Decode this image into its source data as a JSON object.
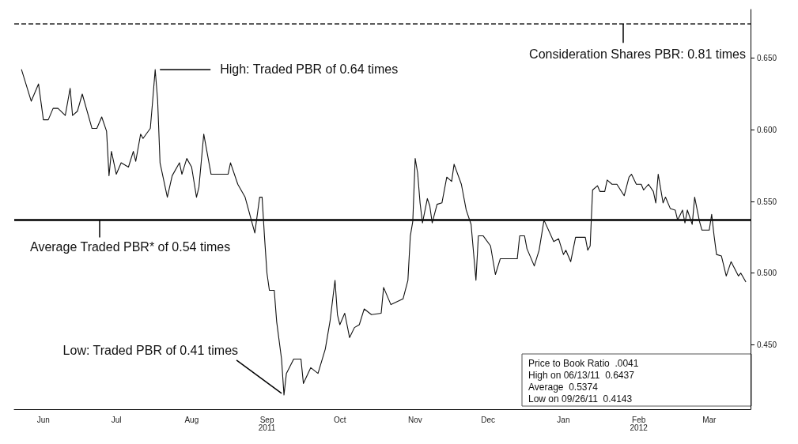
{
  "chart_data": {
    "type": "line",
    "x": [
      "2011-06-06",
      "2011-06-10",
      "2011-06-13",
      "2011-06-15",
      "2011-06-17",
      "2011-06-19",
      "2011-06-21",
      "2011-06-24",
      "2011-06-26",
      "2011-06-27",
      "2011-06-29",
      "2011-07-01",
      "2011-07-05",
      "2011-07-07",
      "2011-07-09",
      "2011-07-11",
      "2011-07-12",
      "2011-07-13",
      "2011-07-15",
      "2011-07-17",
      "2011-07-20",
      "2011-07-22",
      "2011-07-23",
      "2011-07-25",
      "2011-07-26",
      "2011-07-29",
      "2011-07-30",
      "2011-07-31",
      "2011-08-01",
      "2011-08-02",
      "2011-08-05",
      "2011-08-07",
      "2011-08-10",
      "2011-08-11",
      "2011-08-13",
      "2011-08-15",
      "2011-08-17",
      "2011-08-18",
      "2011-08-20",
      "2011-08-23",
      "2011-08-30",
      "2011-08-31",
      "2011-09-03",
      "2011-09-06",
      "2011-09-10",
      "2011-09-12",
      "2011-09-13",
      "2011-09-14",
      "2011-09-15",
      "2011-09-16",
      "2011-09-18",
      "2011-09-19",
      "2011-09-21",
      "2011-09-22",
      "2011-09-23",
      "2011-09-26",
      "2011-09-29",
      "2011-09-30",
      "2011-10-03",
      "2011-10-06",
      "2011-10-09",
      "2011-10-11",
      "2011-10-13",
      "2011-10-14",
      "2011-10-15",
      "2011-10-17",
      "2011-10-19",
      "2011-10-21",
      "2011-10-23",
      "2011-10-25",
      "2011-10-28",
      "2011-11-01",
      "2011-11-02",
      "2011-11-05",
      "2011-11-10",
      "2011-11-12",
      "2011-11-13",
      "2011-11-14",
      "2011-11-15",
      "2011-11-16",
      "2011-11-17",
      "2011-11-18",
      "2011-11-20",
      "2011-11-21",
      "2011-11-22",
      "2011-11-24",
      "2011-11-26",
      "2011-11-28",
      "2011-11-30",
      "2011-12-01",
      "2011-12-04",
      "2011-12-06",
      "2011-12-08",
      "2011-12-10",
      "2011-12-11",
      "2011-12-13",
      "2011-12-16",
      "2011-12-18",
      "2011-12-20",
      "2011-12-22",
      "2011-12-27",
      "2011-12-28",
      "2011-12-30",
      "2011-12-31",
      "2012-01-03",
      "2012-01-05",
      "2012-01-07",
      "2012-01-11",
      "2012-01-13",
      "2012-01-15",
      "2012-01-16",
      "2012-01-18",
      "2012-01-20",
      "2012-01-24",
      "2012-01-25",
      "2012-01-26",
      "2012-01-27",
      "2012-01-29",
      "2012-01-30",
      "2012-02-01",
      "2012-02-02",
      "2012-02-04",
      "2012-02-06",
      "2012-02-09",
      "2012-02-11",
      "2012-02-12",
      "2012-02-14",
      "2012-02-16",
      "2012-02-17",
      "2012-02-19",
      "2012-02-21",
      "2012-02-22",
      "2012-02-23",
      "2012-02-25",
      "2012-02-26",
      "2012-02-28",
      "2012-03-01",
      "2012-03-02",
      "2012-03-04",
      "2012-03-05",
      "2012-03-06",
      "2012-03-08",
      "2012-03-09",
      "2012-03-11",
      "2012-03-12",
      "2012-03-15",
      "2012-03-16",
      "2012-03-17",
      "2012-03-18",
      "2012-03-20",
      "2012-03-22",
      "2012-03-24",
      "2012-03-27",
      "2012-03-28",
      "2012-03-30"
    ],
    "series": [
      {
        "color": "#111111",
        "values": [
          0.642,
          0.62,
          0.632,
          0.607,
          0.607,
          0.615,
          0.615,
          0.61,
          0.629,
          0.61,
          0.613,
          0.625,
          0.601,
          0.601,
          0.609,
          0.599,
          0.568,
          0.585,
          0.569,
          0.577,
          0.574,
          0.585,
          0.578,
          0.597,
          0.594,
          0.601,
          0.621,
          0.642,
          0.621,
          0.577,
          0.553,
          0.568,
          0.577,
          0.569,
          0.58,
          0.574,
          0.553,
          0.56,
          0.597,
          0.569,
          0.569,
          0.577,
          0.562,
          0.553,
          0.528,
          0.553,
          0.553,
          0.525,
          0.5,
          0.488,
          0.488,
          0.466,
          0.44,
          0.415,
          0.43,
          0.44,
          0.44,
          0.423,
          0.434,
          0.43,
          0.447,
          0.467,
          0.495,
          0.471,
          0.464,
          0.472,
          0.455,
          0.462,
          0.464,
          0.475,
          0.471,
          0.472,
          0.49,
          0.478,
          0.482,
          0.495,
          0.526,
          0.536,
          0.58,
          0.57,
          0.549,
          0.535,
          0.552,
          0.547,
          0.535,
          0.548,
          0.549,
          0.567,
          0.564,
          0.576,
          0.562,
          0.544,
          0.534,
          0.495,
          0.526,
          0.526,
          0.519,
          0.499,
          0.51,
          0.51,
          0.51,
          0.526,
          0.526,
          0.517,
          0.505,
          0.516,
          0.537,
          0.522,
          0.524,
          0.513,
          0.516,
          0.508,
          0.525,
          0.525,
          0.516,
          0.519,
          0.558,
          0.561,
          0.557,
          0.557,
          0.565,
          0.562,
          0.562,
          0.554,
          0.567,
          0.569,
          0.562,
          0.562,
          0.558,
          0.562,
          0.557,
          0.549,
          0.569,
          0.549,
          0.553,
          0.545,
          0.544,
          0.537,
          0.544,
          0.535,
          0.544,
          0.534,
          0.553,
          0.536,
          0.53,
          0.53,
          0.541,
          0.526,
          0.513,
          0.512,
          0.498,
          0.508,
          0.498,
          0.5,
          0.494
        ]
      }
    ],
    "xlim": [
      "2011-06-03",
      "2012-04-01"
    ],
    "xticks": [
      {
        "value": "2011-06-15",
        "label": "Jun"
      },
      {
        "value": "2011-07-15",
        "label": "Jul"
      },
      {
        "value": "2011-08-15",
        "label": "Aug"
      },
      {
        "value": "2011-09-15",
        "label": "Sep\n2011"
      },
      {
        "value": "2011-10-15",
        "label": "Oct"
      },
      {
        "value": "2011-11-15",
        "label": "Nov"
      },
      {
        "value": "2011-12-15",
        "label": "Dec"
      },
      {
        "value": "2012-01-15",
        "label": "Jan"
      },
      {
        "value": "2012-02-15",
        "label": "Feb\n2012"
      },
      {
        "value": "2012-03-15",
        "label": "Mar"
      }
    ],
    "ylim": [
      0.405,
      0.684
    ],
    "yticks": [
      {
        "value": 0.45,
        "label": "0.450"
      },
      {
        "value": 0.5,
        "label": "0.500"
      },
      {
        "value": 0.55,
        "label": "0.550"
      },
      {
        "value": 0.6,
        "label": "0.600"
      },
      {
        "value": 0.65,
        "label": "0.650"
      }
    ],
    "grid": false,
    "marker": "none",
    "line_style": "solid",
    "ref_lines": [
      {
        "axis": "y",
        "value": 0.537,
        "label": "Average Traded PBR* of 0.54 times",
        "line_style": "solid",
        "color": "#000000"
      },
      {
        "axis": "y",
        "value": 0.674,
        "label": null,
        "line_style": "dashed",
        "color": "#000000"
      }
    ],
    "annotations": [
      {
        "text": "High: Traded PBR of 0.64 times",
        "x": "2011-07-31",
        "y": 0.642
      },
      {
        "text": "Low: Traded PBR of 0.41 times",
        "x": "2011-09-22",
        "y": 0.415
      },
      "Consideration Shares PBR: 0.81 times",
      "Price to Book Ratio  .0041",
      "High on 06/13/11  0.6437",
      "Average  0.5374",
      "Low on 09/26/11  0.4143"
    ]
  }
}
